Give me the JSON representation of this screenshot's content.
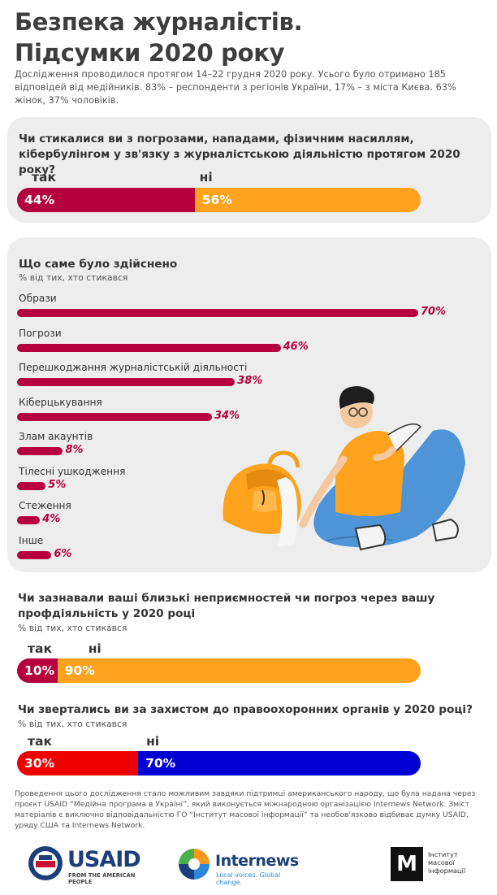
{
  "title": {
    "line1": "Безпека журналістів.",
    "line2": "Підсумки 2020 року"
  },
  "intro": "Дослідження проводилося протягом 14–22 грудня 2020 року. Усього було отримано 185 відповідей від медійників. 83% – респонденти з регіонів України, 17% – з міста Києва. 63% жінок, 37% чоловіків.",
  "q1": {
    "question_line1": "Чи стикалися ви з погрозами, нападами, фізичним насиллям,",
    "question_line2": "кібербулінгом у зв'язку з журналістською діяльністю протягом 2020 року?",
    "yes_label": "так",
    "no_label": "ні",
    "yes_value": 44,
    "no_value": 56,
    "yes_text": "44%",
    "no_text": "56%"
  },
  "q2": {
    "title": "Що саме було здійснено",
    "subtitle": "% від тих, хто стикався"
  },
  "q3": {
    "question_line1": "Чи зазнавали ваші близькі неприємностей чи погроз через вашу",
    "question_line2": "профдіяльність у 2020 році",
    "subtitle": "% від тих, хто стикався",
    "yes_label": "так",
    "no_label": "ні",
    "yes_value": 10,
    "no_value": 90,
    "yes_text": "10%",
    "no_text": "90%"
  },
  "q4": {
    "question": "Чи звертались ви за захистом до правоохоронних органів у 2020 році?",
    "subtitle": "% від тих, хто стикався",
    "yes_label": "так",
    "no_label": "ні",
    "yes_value": 30,
    "no_value": 70,
    "yes_text": "30%",
    "no_text": "70%"
  },
  "chart_data": {
    "type": "bar",
    "title": "Що саме було здійснено",
    "subtitle": "% від тих, хто стикався",
    "categories": [
      "Образи",
      "Погрози",
      "Перешкоджання журналістській діяльності",
      "Кіберцькування",
      "Злам акаунтів",
      "Тілесні ушкодження",
      "Стеження",
      "Інше"
    ],
    "values": [
      70,
      46,
      38,
      34,
      8,
      5,
      4,
      6
    ],
    "value_labels": [
      "70%",
      "46%",
      "38%",
      "34%",
      "8%",
      "5%",
      "4%",
      "6%"
    ],
    "xlim": [
      0,
      70
    ],
    "orientation": "horizontal",
    "grid": false
  },
  "colors": {
    "crimson": "#b5003d",
    "orange": "#ffa21d",
    "red": "#ee0000",
    "blue": "#0000d2",
    "panel": "#ededed"
  },
  "footer": "Проведення цього дослідження стало можливим завдяки підтримці американського народу, що була надана через проєкт USAID “Медійна програма в Україні”, який виконується міжнародною організацією Internews Network. Зміст матеріалів є виключно відповідальністю ГО “Інститут масової інформації” та необов'язково відбиває думку USAID, уряду США та Internews Network.",
  "logos": {
    "usaid_name": "USAID",
    "usaid_tagline": "FROM THE AMERICAN PEOPLE",
    "internews_name": "Internews",
    "internews_tagline": "Local voices. Global change.",
    "imi_line1": "Інститут",
    "imi_line2": "масової",
    "imi_line3": "інформації",
    "imi_letter": "М"
  },
  "illustration": {
    "icon": "journalist-with-bag-illustration"
  }
}
